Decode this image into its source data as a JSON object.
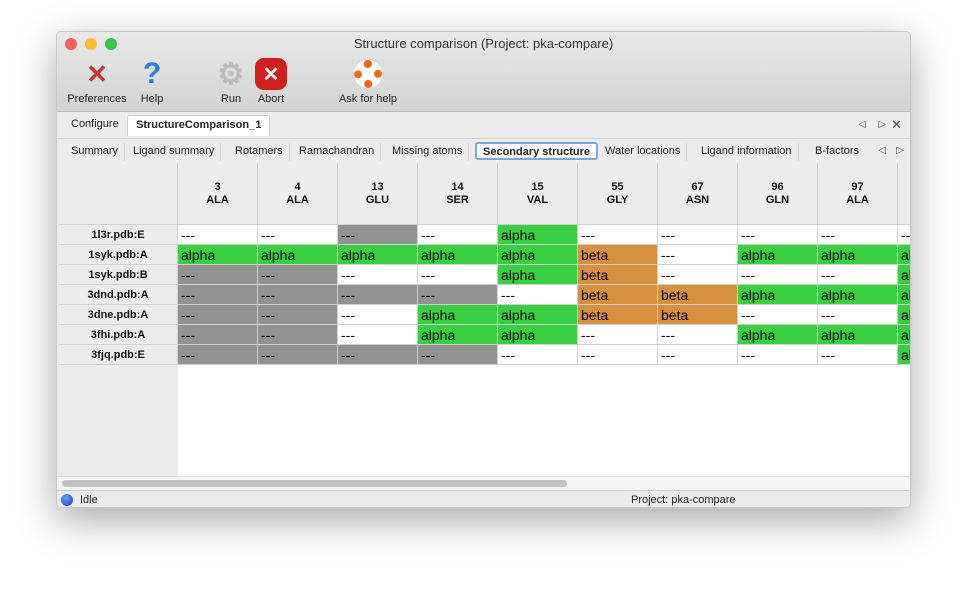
{
  "window": {
    "title": "Structure comparison (Project: pka-compare)"
  },
  "toolbar": [
    {
      "label": "Preferences",
      "icon": "tools-icon"
    },
    {
      "label": "Help",
      "icon": "question-icon"
    },
    {
      "label": "Run",
      "icon": "gear-icon"
    },
    {
      "label": "Abort",
      "icon": "abort-icon"
    },
    {
      "label": "Ask for help",
      "icon": "lifebuoy-icon"
    }
  ],
  "tabs": [
    {
      "label": "Configure"
    },
    {
      "label": "StructureComparison_1",
      "selected": true
    }
  ],
  "subtabs": [
    {
      "label": "Summary"
    },
    {
      "label": "Ligand summary"
    },
    {
      "label": "Rotamers"
    },
    {
      "label": "Ramachandran"
    },
    {
      "label": "Missing atoms"
    },
    {
      "label": "Secondary structure",
      "selected": true
    },
    {
      "label": "Water locations"
    },
    {
      "label": "Ligand information"
    },
    {
      "label": "B-factors"
    }
  ],
  "colors": {
    "alpha": "#38d040",
    "beta": "#d89040",
    "missing": "#929292",
    "none": "#ffffff"
  },
  "table": {
    "columns": [
      {
        "num": "3",
        "res": "ALA"
      },
      {
        "num": "4",
        "res": "ALA"
      },
      {
        "num": "13",
        "res": "GLU"
      },
      {
        "num": "14",
        "res": "SER"
      },
      {
        "num": "15",
        "res": "VAL"
      },
      {
        "num": "55",
        "res": "GLY"
      },
      {
        "num": "67",
        "res": "ASN"
      },
      {
        "num": "96",
        "res": "GLN"
      },
      {
        "num": "97",
        "res": "ALA"
      },
      {
        "num": "",
        "res": ""
      }
    ],
    "rows": [
      {
        "label": "1l3r.pdb:E",
        "cells": [
          "---",
          "---",
          "---|missing",
          "---",
          "alpha",
          "---",
          "---",
          "---",
          "---",
          "---"
        ]
      },
      {
        "label": "1syk.pdb:A",
        "cells": [
          "alpha",
          "alpha",
          "alpha",
          "alpha",
          "alpha",
          "beta",
          "---",
          "alpha",
          "alpha",
          "alpha"
        ]
      },
      {
        "label": "1syk.pdb:B",
        "cells": [
          "---|missing",
          "---|missing",
          "---",
          "---",
          "alpha",
          "beta",
          "---",
          "---",
          "---",
          "alpha"
        ]
      },
      {
        "label": "3dnd.pdb:A",
        "cells": [
          "---|missing",
          "---|missing",
          "---|missing",
          "---|missing",
          "---",
          "beta",
          "beta",
          "alpha",
          "alpha",
          "alpha"
        ]
      },
      {
        "label": "3dne.pdb:A",
        "cells": [
          "---|missing",
          "---|missing",
          "---",
          "alpha",
          "alpha",
          "beta",
          "beta",
          "---",
          "---",
          "alpha"
        ]
      },
      {
        "label": "3fhi.pdb:A",
        "cells": [
          "---|missing",
          "---|missing",
          "---",
          "alpha",
          "alpha",
          "---",
          "---",
          "alpha",
          "alpha",
          "alpha"
        ]
      },
      {
        "label": "3fjq.pdb:E",
        "cells": [
          "---|missing",
          "---|missing",
          "---|missing",
          "---|missing",
          "---",
          "---",
          "---",
          "---",
          "---",
          "alpha"
        ]
      }
    ]
  },
  "status": {
    "state": "Idle",
    "project": "Project: pka-compare"
  }
}
